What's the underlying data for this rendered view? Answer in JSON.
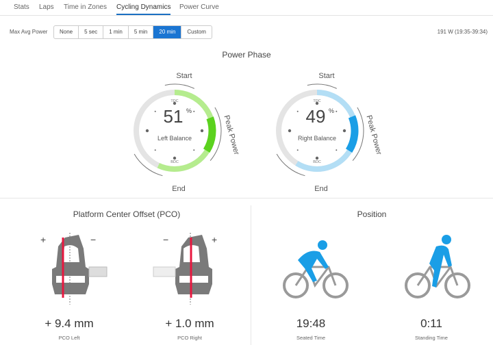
{
  "tabs": [
    {
      "label": "Stats"
    },
    {
      "label": "Laps"
    },
    {
      "label": "Time in Zones"
    },
    {
      "label": "Cycling Dynamics",
      "active": true
    },
    {
      "label": "Power Curve"
    }
  ],
  "filter": {
    "label": "Max Avg Power",
    "options": [
      "None",
      "5 sec",
      "1 min",
      "5 min",
      "20 min",
      "Custom"
    ],
    "selected": "20 min",
    "summary": "191 W (19:35-39:34)"
  },
  "power_phase": {
    "title": "Power Phase",
    "start_label": "Start",
    "end_label": "End",
    "peak_label": "Peak Power",
    "tdc": "TDC",
    "bdc": "BDC",
    "left": {
      "value": "51",
      "unit": "%",
      "label": "Left Balance",
      "phase_deg": [
        0,
        205
      ],
      "peak_deg": [
        70,
        122
      ],
      "color": "#b5ec8e",
      "peak_color": "#5bd21e"
    },
    "right": {
      "value": "49",
      "unit": "%",
      "label": "Right Balance",
      "phase_deg": [
        0,
        212
      ],
      "peak_deg": [
        68,
        122
      ],
      "color": "#b3def5",
      "peak_color": "#1a9ee6"
    }
  },
  "pco": {
    "title": "Platform Center Offset (PCO)",
    "left": {
      "value": "+ 9.4 mm",
      "label": "PCO Left"
    },
    "right": {
      "value": "+ 1.0 mm",
      "label": "PCO Right"
    },
    "plus": "+",
    "minus": "−"
  },
  "position": {
    "title": "Position",
    "seated": {
      "value": "19:48",
      "label": "Seated Time"
    },
    "standing": {
      "value": "0:11",
      "label": "Standing Time"
    }
  },
  "colors": {
    "accent": "#1a75d2",
    "pco_line": "#e8173f",
    "rider": "#1a9ee6"
  }
}
